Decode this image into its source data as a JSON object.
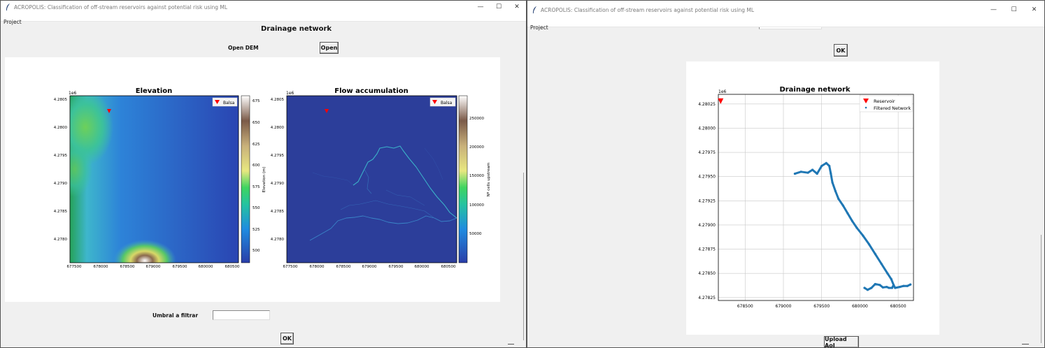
{
  "left": {
    "title": "ACROPOLIS: Classification of off-stream reservoirs against potential risk using ML",
    "menu": "Project",
    "heading": "Drainage network",
    "open_dem_label": "Open DEM",
    "open_button": "Open",
    "threshold_label": "Umbral a filtrar",
    "threshold_value": "",
    "ok_button": "OK",
    "elevation_plot": {
      "title": "Elevation",
      "offset": "1e6",
      "xticks": [
        "677500",
        "678000",
        "678500",
        "679000",
        "679500",
        "680000",
        "680500"
      ],
      "yticks": [
        "4.2805",
        "4.2800",
        "4.2795",
        "4.2790",
        "4.2785",
        "4.2780"
      ],
      "legend": "Balsa",
      "colorbar_label": "Elevation (m)",
      "colorbar_ticks": [
        "675",
        "650",
        "625",
        "600",
        "575",
        "550",
        "525",
        "500"
      ]
    },
    "flow_plot": {
      "title": "Flow accumulation",
      "offset": "1e6",
      "xticks": [
        "677500",
        "678000",
        "678500",
        "679000",
        "679500",
        "680000",
        "680500"
      ],
      "yticks": [
        "4.2805",
        "4.2800",
        "4.2795",
        "4.2790",
        "4.2785",
        "4.2780"
      ],
      "legend": "Balsa",
      "colorbar_label": "Nº cells upstream",
      "colorbar_ticks": [
        "250000",
        "200000",
        "150000",
        "100000",
        "50000"
      ]
    }
  },
  "right": {
    "title": "ACROPOLIS: Classification of off-stream reservoirs against potential risk using ML",
    "menu": "Project",
    "ok_button": "OK",
    "upload_button": "Upload AoI",
    "chart_data": {
      "type": "scatter",
      "title": "Drainage network",
      "offset": "1e6",
      "xticks": [
        "678500",
        "679000",
        "679500",
        "680000",
        "680500"
      ],
      "yticks": [
        "4.28025",
        "4.28000",
        "4.27975",
        "4.27950",
        "4.27925",
        "4.27900",
        "4.27875",
        "4.27850",
        "4.27825"
      ],
      "xlim": [
        678150,
        680700
      ],
      "ylim": [
        4278220,
        4280350
      ],
      "grid": true,
      "legend_position": "top-right",
      "series": [
        {
          "name": "Reservoir",
          "marker": "triangle-down",
          "color": "#ff0000",
          "points": [
            [
              678180,
              4280280
            ]
          ]
        },
        {
          "name": "Filtered Network",
          "marker": "dot",
          "color": "#1f77b4",
          "points": [
            [
              679150,
              4279530
            ],
            [
              679230,
              4279550
            ],
            [
              679320,
              4279540
            ],
            [
              679380,
              4279570
            ],
            [
              679440,
              4279530
            ],
            [
              679500,
              4279610
            ],
            [
              679560,
              4279640
            ],
            [
              679600,
              4279610
            ],
            [
              679620,
              4279530
            ],
            [
              679640,
              4279440
            ],
            [
              679680,
              4279350
            ],
            [
              679720,
              4279270
            ],
            [
              679780,
              4279200
            ],
            [
              679840,
              4279120
            ],
            [
              679900,
              4279040
            ],
            [
              679960,
              4278970
            ],
            [
              680040,
              4278890
            ],
            [
              680120,
              4278800
            ],
            [
              680200,
              4278700
            ],
            [
              680280,
              4278600
            ],
            [
              680360,
              4278500
            ],
            [
              680410,
              4278440
            ],
            [
              680440,
              4278380
            ],
            [
              680420,
              4278350
            ],
            [
              680380,
              4278350
            ],
            [
              680350,
              4278360
            ],
            [
              680300,
              4278355
            ],
            [
              680260,
              4278380
            ],
            [
              680200,
              4278390
            ],
            [
              680150,
              4278350
            ],
            [
              680100,
              4278330
            ],
            [
              680060,
              4278350
            ],
            [
              680460,
              4278350
            ],
            [
              680520,
              4278360
            ],
            [
              680570,
              4278370
            ],
            [
              680620,
              4278370
            ],
            [
              680660,
              4278385
            ]
          ]
        }
      ]
    }
  },
  "colors": {
    "reservoir": "#ff0000",
    "network": "#1f77b4",
    "flow_background": "#2c3e9a"
  }
}
